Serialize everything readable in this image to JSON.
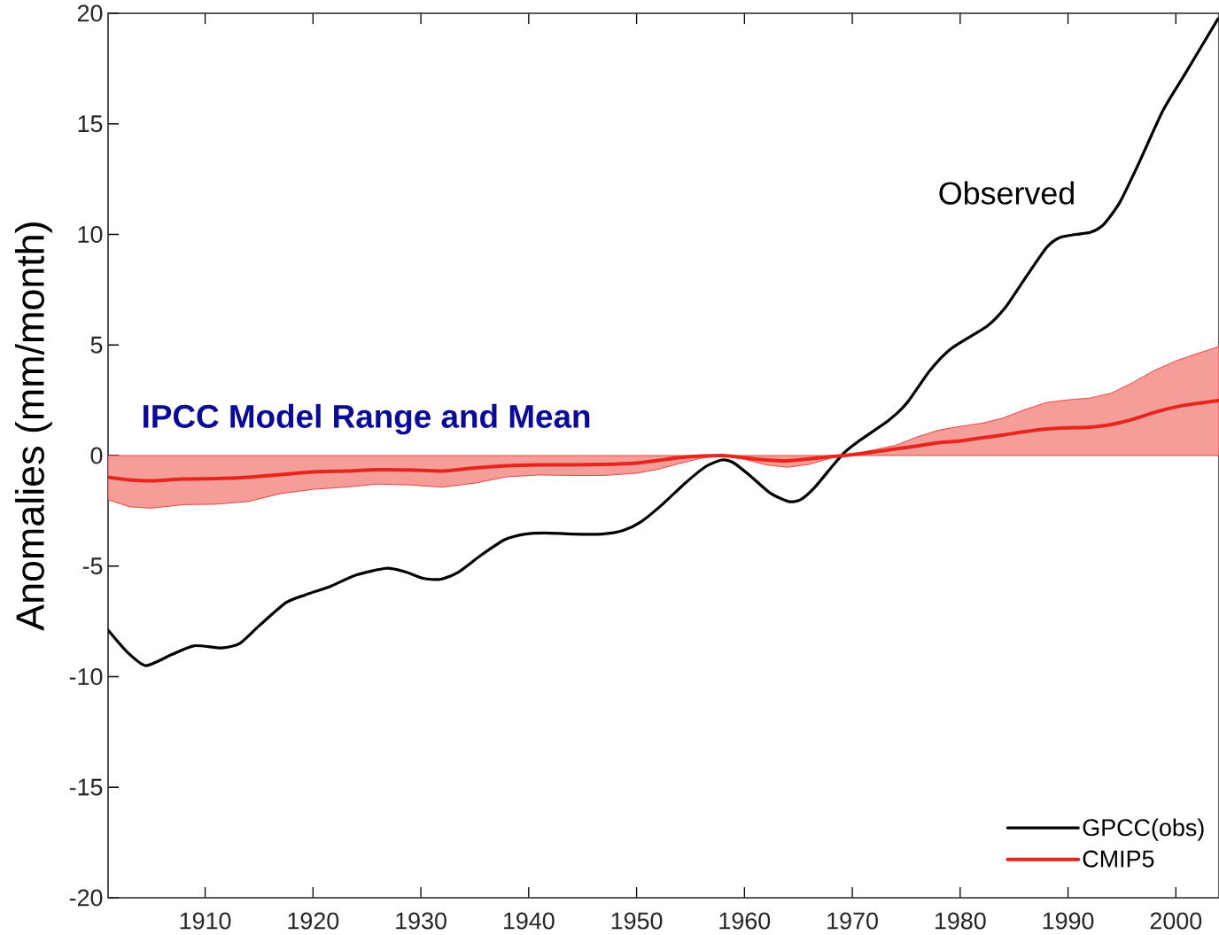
{
  "chart_data": {
    "type": "line",
    "ylabel": "Anomalies (mm/month)",
    "annotations": [
      "Observed",
      "IPCC Model Range and Mean"
    ],
    "xlim": [
      1901,
      2004
    ],
    "ylim": [
      -20,
      20
    ],
    "xticks": [
      1910,
      1920,
      1930,
      1940,
      1950,
      1960,
      1970,
      1980,
      1990,
      2000
    ],
    "yticks": [
      -20,
      -15,
      -10,
      -5,
      0,
      5,
      10,
      15,
      20
    ],
    "legend": "bottom right",
    "series": [
      {
        "name": "GPCC(obs)",
        "color": "#000000",
        "x": [
          1901,
          1902.8,
          1904.5,
          1906.9,
          1909,
          1911.5,
          1913.2,
          1915,
          1917.5,
          1919.3,
          1921.7,
          1924,
          1926.8,
          1928.5,
          1930.2,
          1931.8,
          1933.4,
          1935.6,
          1937.8,
          1939.7,
          1941.5,
          1944,
          1946.8,
          1948.7,
          1950.4,
          1952.3,
          1954.5,
          1956.4,
          1957.9,
          1958.9,
          1960.5,
          1962.4,
          1964.1,
          1965.2,
          1966.5,
          1968.2,
          1969.3,
          1970.6,
          1973.4,
          1975.1,
          1977.2,
          1979.2,
          1982.5,
          1984.2,
          1986,
          1988,
          1989.2,
          1990.7,
          1992.1,
          1993.3,
          1994.8,
          1996.5,
          1998.8,
          2000.9,
          2003.9
        ],
        "values": [
          -7.9,
          -8.9,
          -9.5,
          -9.0,
          -8.6,
          -8.7,
          -8.5,
          -7.7,
          -6.65,
          -6.3,
          -5.9,
          -5.4,
          -5.1,
          -5.25,
          -5.55,
          -5.6,
          -5.3,
          -4.5,
          -3.8,
          -3.55,
          -3.5,
          -3.55,
          -3.55,
          -3.4,
          -3.0,
          -2.25,
          -1.25,
          -0.5,
          -0.2,
          -0.3,
          -0.9,
          -1.7,
          -2.08,
          -2.0,
          -1.45,
          -0.45,
          0.15,
          0.65,
          1.6,
          2.4,
          3.85,
          4.85,
          5.85,
          6.7,
          8.0,
          9.4,
          9.85,
          10.0,
          10.1,
          10.45,
          11.45,
          13.15,
          15.6,
          17.3,
          19.75
        ]
      },
      {
        "name": "CMIP5",
        "color": "#e8251d",
        "x": [
          1901,
          1903,
          1905,
          1908,
          1911,
          1914,
          1917,
          1920,
          1923,
          1926,
          1929,
          1932,
          1935,
          1938,
          1941,
          1944,
          1947,
          1950,
          1952,
          1954,
          1956,
          1958,
          1960,
          1962,
          1964,
          1966,
          1968,
          1969.3,
          1972,
          1974,
          1976,
          1978,
          1980,
          1982,
          1984,
          1986,
          1988,
          1990,
          1992,
          1994,
          1996,
          1998,
          2000,
          2002,
          2004
        ],
        "values": [
          -0.98,
          -1.1,
          -1.14,
          -1.06,
          -1.04,
          -0.98,
          -0.86,
          -0.74,
          -0.7,
          -0.64,
          -0.65,
          -0.7,
          -0.56,
          -0.46,
          -0.42,
          -0.42,
          -0.4,
          -0.34,
          -0.22,
          -0.09,
          -0.02,
          0,
          -0.1,
          -0.2,
          -0.24,
          -0.15,
          -0.05,
          0,
          0.16,
          0.3,
          0.43,
          0.58,
          0.66,
          0.8,
          0.93,
          1.08,
          1.2,
          1.25,
          1.28,
          1.4,
          1.64,
          1.95,
          2.2,
          2.36,
          2.49
        ],
        "lower": [
          -2.0,
          -2.32,
          -2.38,
          -2.22,
          -2.2,
          -2.08,
          -1.72,
          -1.53,
          -1.43,
          -1.29,
          -1.33,
          -1.43,
          -1.25,
          -0.96,
          -0.88,
          -0.9,
          -0.9,
          -0.8,
          -0.62,
          -0.36,
          -0.12,
          0,
          -0.17,
          -0.42,
          -0.53,
          -0.4,
          -0.12,
          0,
          0,
          0,
          0,
          0,
          0,
          0,
          0,
          0,
          0,
          0,
          0,
          0,
          0,
          0,
          0,
          0,
          0
        ],
        "upper": [
          0,
          0,
          0,
          0,
          0,
          0,
          0,
          0,
          0,
          0,
          0,
          0,
          0,
          0,
          0,
          0,
          0,
          0,
          0,
          0,
          0,
          0,
          0,
          0,
          0,
          0,
          0,
          0,
          0.26,
          0.46,
          0.84,
          1.15,
          1.32,
          1.46,
          1.7,
          2.08,
          2.4,
          2.52,
          2.6,
          2.82,
          3.3,
          3.85,
          4.28,
          4.62,
          4.93
        ]
      }
    ]
  }
}
